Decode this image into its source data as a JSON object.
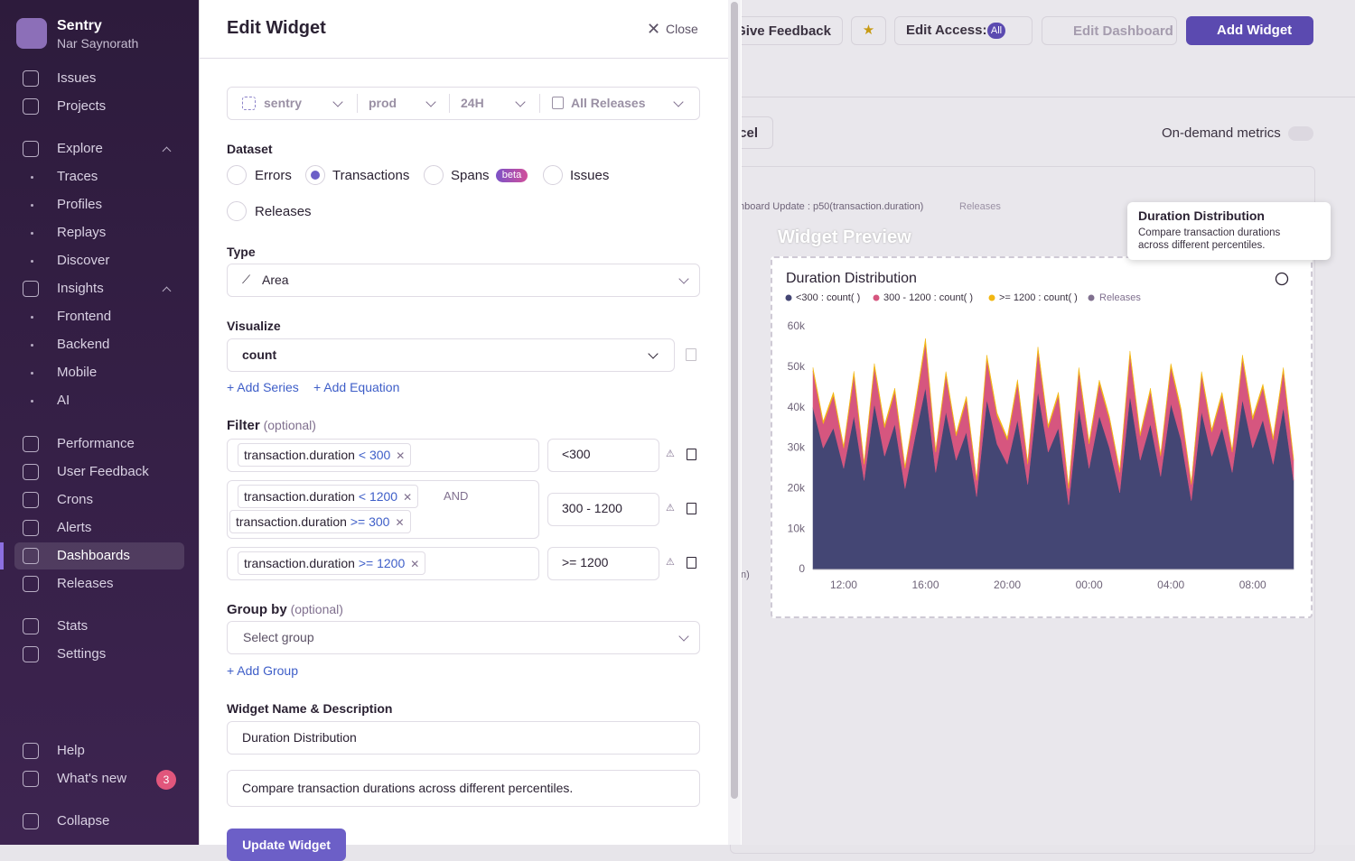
{
  "sidebar": {
    "org": "Sentry",
    "user": "Nar Saynorath",
    "nav": [
      "Issues",
      "Projects",
      "Explore",
      "Traces",
      "Profiles",
      "Replays",
      "Discover",
      "Insights",
      "Frontend",
      "Backend",
      "Mobile",
      "AI",
      "Performance",
      "User Feedback",
      "Crons",
      "Alerts",
      "Dashboards",
      "Releases",
      "Stats",
      "Settings",
      "Help",
      "What's new",
      "Collapse"
    ],
    "active": "Dashboards",
    "whats_new_count": 3
  },
  "drawer": {
    "title": "Edit Widget",
    "close": "Close",
    "page_filters": [
      "sentry",
      "prod",
      "24H",
      "All Releases"
    ],
    "dataset": {
      "label": "Dataset",
      "options": [
        "Errors",
        "Transactions",
        "Spans",
        "Issues",
        "Releases"
      ],
      "selected": "Transactions",
      "beta": "beta"
    },
    "type": {
      "label": "Type",
      "value": "Area"
    },
    "visualize": {
      "label": "Visualize",
      "value": "count",
      "add_series": "+ Add Series",
      "add_equation": "+ Add Equation"
    },
    "filter": {
      "label": "Filter",
      "optional": "(optional)",
      "and": "AND",
      "conditions": [
        [
          {
            "key": "transaction.duration",
            "op": "<",
            "value": 300
          }
        ],
        [
          {
            "key": "transaction.duration",
            "op": "<",
            "value": 1200
          },
          {
            "key": "transaction.duration",
            "op": ">=",
            "value": 300
          }
        ],
        [
          {
            "key": "transaction.duration",
            "op": ">=",
            "value": 1200
          }
        ]
      ],
      "aliases": [
        "<300",
        "300 - 1200",
        ">= 1200"
      ]
    },
    "group_by": {
      "label": "Group by",
      "optional": "(optional)",
      "placeholder": "Select group",
      "add": "+ Add Group"
    },
    "name": {
      "label": "Widget Name & Description",
      "value": "Duration Distribution",
      "description": "Compare transaction durations across different percentiles."
    },
    "submit": "Update Widget"
  },
  "background": {
    "give_feedback": "Give Feedback",
    "edit_access": "Edit Access:",
    "edit_access_badge": "All",
    "edit_dashboard": "Edit Dashboard",
    "add_widget": "Add Widget",
    "cancel_fragment": "cel",
    "on_demand": "On-demand metrics",
    "widget_fragment": "hboard Update : p50(transaction.duration)",
    "widget_releases": "Releases",
    "fragment2": "n)"
  },
  "preview": {
    "heading": "Widget Preview",
    "tooltip": {
      "title": "Duration Distribution",
      "description": "Compare transaction durations across different percentiles."
    },
    "chart_data": {
      "type": "area",
      "stacked": true,
      "title": "Duration Distribution",
      "grid": false,
      "categories": [
        null,
        null,
        null,
        "12:00",
        null,
        null,
        null,
        null,
        null,
        null,
        null,
        "16:00",
        null,
        null,
        null,
        null,
        null,
        null,
        null,
        "20:00",
        null,
        null,
        null,
        null,
        null,
        null,
        null,
        "00:00",
        null,
        null,
        null,
        null,
        null,
        null,
        null,
        "04:00",
        null,
        null,
        null,
        null,
        null,
        null,
        null,
        "08:00",
        null,
        null,
        null,
        null
      ],
      "series": [
        {
          "name": "<300 : count( )",
          "color": "#444674",
          "values": [
            40000,
            30000,
            35000,
            25000,
            38000,
            22000,
            41000,
            28000,
            36000,
            20000,
            33000,
            45000,
            24000,
            39000,
            27000,
            34000,
            18000,
            42000,
            31000,
            26000,
            37000,
            21000,
            44000,
            29000,
            35000,
            16000,
            40000,
            25000,
            38000,
            30000,
            19000,
            43000,
            27000,
            36000,
            23000,
            41000,
            32000,
            17000,
            39000,
            28000,
            35000,
            24000,
            42000,
            30000,
            37000,
            26000,
            40000,
            22000
          ]
        },
        {
          "name": "300 - 1200 : count( )",
          "color": "#d6567f",
          "values": [
            9000,
            6000,
            8000,
            5000,
            10000,
            4000,
            9000,
            7000,
            8000,
            5000,
            7000,
            11000,
            5000,
            9000,
            6000,
            8000,
            4000,
            10000,
            7000,
            6000,
            9000,
            5000,
            10000,
            6000,
            8000,
            4000,
            9000,
            6000,
            8000,
            7000,
            5000,
            10000,
            6000,
            8000,
            5000,
            9000,
            7000,
            4000,
            9000,
            6000,
            8000,
            5000,
            10000,
            7000,
            8000,
            6000,
            9000,
            5000
          ]
        },
        {
          "name": ">= 1200 : count( )",
          "color": "#f2b712",
          "values": [
            900,
            600,
            800,
            500,
            1000,
            400,
            900,
            700,
            800,
            500,
            700,
            1100,
            500,
            900,
            600,
            800,
            400,
            1000,
            700,
            600,
            900,
            500,
            1000,
            600,
            800,
            400,
            900,
            600,
            800,
            700,
            500,
            1000,
            600,
            800,
            500,
            900,
            700,
            400,
            900,
            600,
            800,
            500,
            1000,
            700,
            800,
            600,
            900,
            500
          ]
        }
      ],
      "releases_legend": "Releases",
      "releases_color": "#80708f",
      "ylim": [
        0,
        60000
      ],
      "yticks": [
        0,
        {
          "value": 10000,
          "label": "10k"
        },
        {
          "value": 20000,
          "label": "20k"
        },
        {
          "value": 30000,
          "label": "30k"
        },
        {
          "value": 40000,
          "label": "40k"
        },
        {
          "value": 50000,
          "label": "50k"
        },
        {
          "value": 60000,
          "label": "60k"
        }
      ]
    }
  }
}
